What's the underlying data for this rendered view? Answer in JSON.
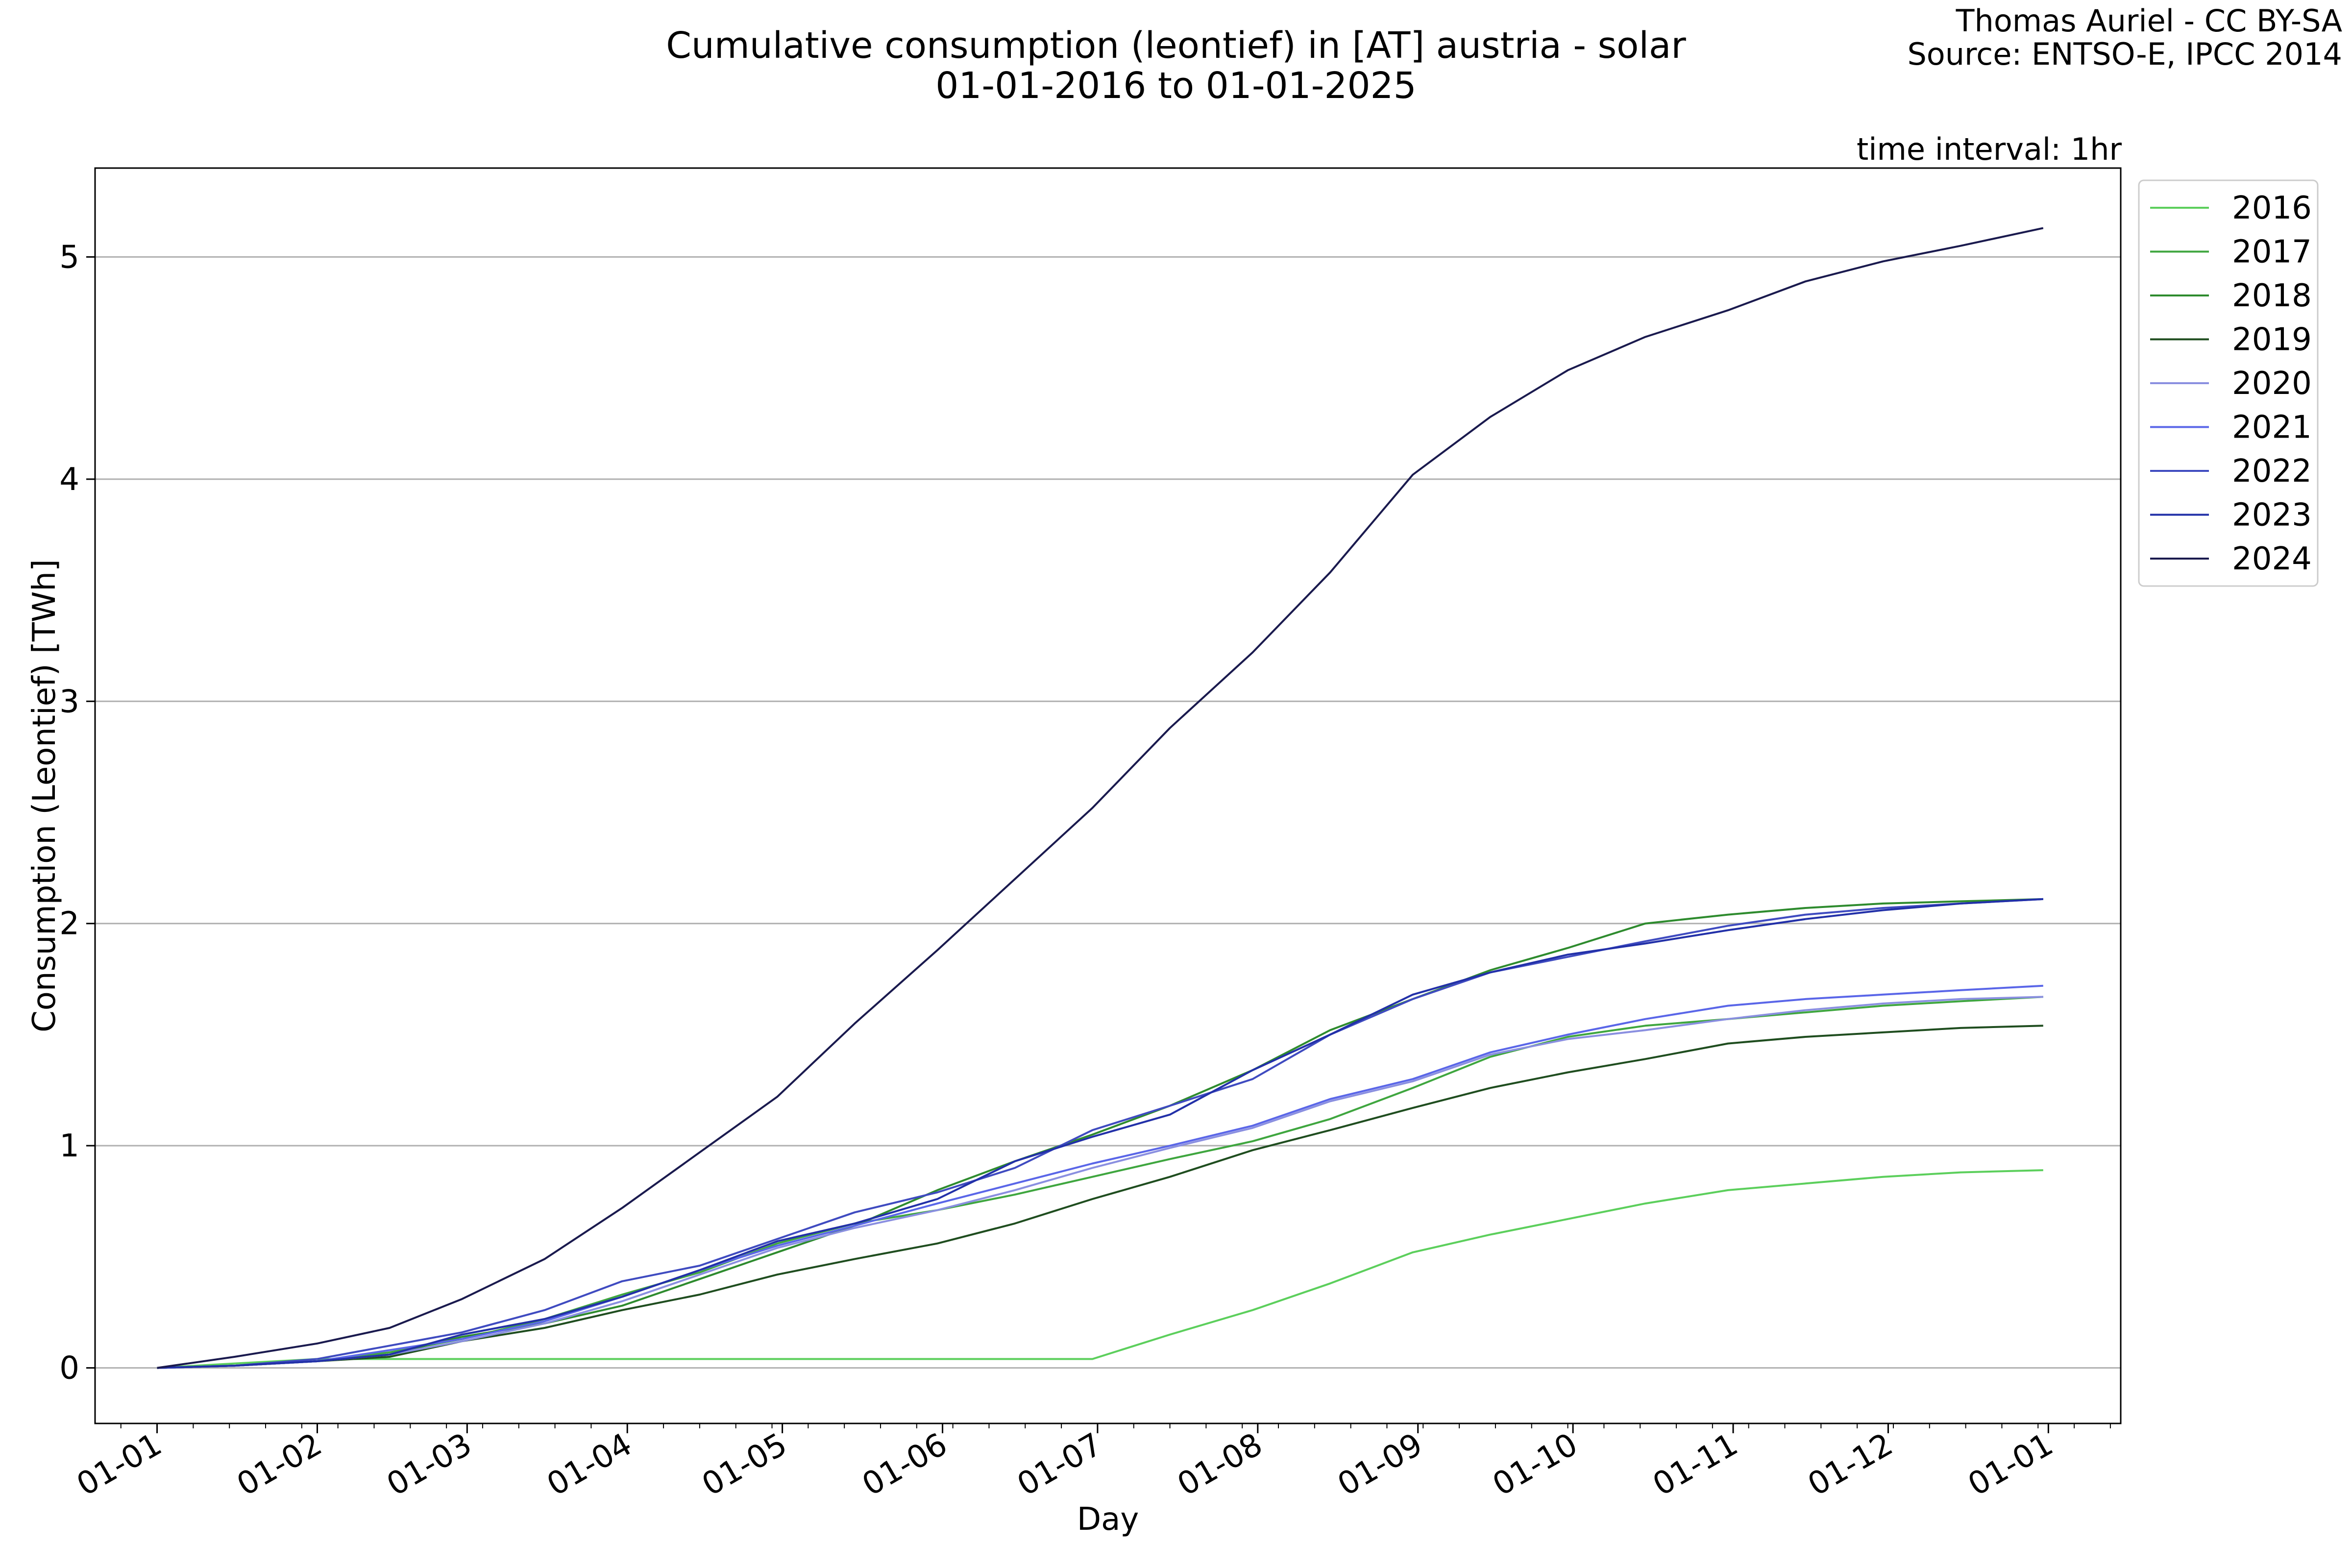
{
  "header": {
    "title_line1": "Cumulative consumption (leontief) in [AT] austria - solar",
    "title_line2": "01-01-2016 to 01-01-2025",
    "credit_line1": "Thomas Auriel - CC BY-SA",
    "credit_line2": "Source: ENTSO-E, IPCC 2014",
    "interval": "time interval: 1hr"
  },
  "chart_data": {
    "type": "line",
    "xlabel": "Day",
    "ylabel": "Consumption (Leontief) [TWh]",
    "x_ticks": [
      "01-01",
      "01-02",
      "01-03",
      "01-04",
      "01-05",
      "01-06",
      "01-07",
      "01-08",
      "01-09",
      "01-10",
      "01-11",
      "01-12",
      "01-01"
    ],
    "y_ticks": [
      0,
      1,
      2,
      3,
      4,
      5
    ],
    "xlim_days": [
      -12,
      380
    ],
    "ylim": [
      -0.25,
      5.4
    ],
    "grid": "y-major",
    "legend_position": "outside-right-top",
    "x": [
      0,
      15,
      31,
      45,
      59,
      75,
      90,
      105,
      120,
      135,
      151,
      166,
      181,
      196,
      212,
      227,
      243,
      258,
      273,
      288,
      304,
      319,
      334,
      349,
      365
    ],
    "series": [
      {
        "name": "2016",
        "color": "#5ccf5c",
        "values": [
          0,
          0.02,
          0.04,
          0.04,
          0.04,
          0.04,
          0.04,
          0.04,
          0.04,
          0.04,
          0.04,
          0.04,
          0.04,
          0.15,
          0.26,
          0.38,
          0.52,
          0.6,
          0.67,
          0.74,
          0.8,
          0.83,
          0.86,
          0.88,
          0.89
        ]
      },
      {
        "name": "2017",
        "color": "#3fa63f",
        "values": [
          0,
          0.01,
          0.03,
          0.07,
          0.13,
          0.22,
          0.33,
          0.43,
          0.56,
          0.65,
          0.71,
          0.78,
          0.86,
          0.94,
          1.02,
          1.12,
          1.26,
          1.4,
          1.49,
          1.54,
          1.57,
          1.6,
          1.63,
          1.65,
          1.67
        ]
      },
      {
        "name": "2018",
        "color": "#2e8b2e",
        "values": [
          0,
          0.01,
          0.03,
          0.06,
          0.14,
          0.2,
          0.28,
          0.4,
          0.52,
          0.64,
          0.8,
          0.93,
          1.05,
          1.18,
          1.34,
          1.52,
          1.66,
          1.79,
          1.89,
          2.0,
          2.04,
          2.07,
          2.09,
          2.1,
          2.11
        ]
      },
      {
        "name": "2019",
        "color": "#1f4d1f",
        "values": [
          0,
          0.01,
          0.03,
          0.05,
          0.12,
          0.18,
          0.26,
          0.33,
          0.42,
          0.49,
          0.56,
          0.65,
          0.76,
          0.86,
          0.98,
          1.07,
          1.17,
          1.26,
          1.33,
          1.39,
          1.46,
          1.49,
          1.51,
          1.53,
          1.54
        ]
      },
      {
        "name": "2020",
        "color": "#8a8fe0",
        "values": [
          0,
          0.01,
          0.03,
          0.06,
          0.12,
          0.2,
          0.3,
          0.42,
          0.54,
          0.63,
          0.71,
          0.8,
          0.9,
          0.99,
          1.08,
          1.2,
          1.29,
          1.41,
          1.48,
          1.52,
          1.57,
          1.61,
          1.64,
          1.66,
          1.67
        ]
      },
      {
        "name": "2021",
        "color": "#5a66e8",
        "values": [
          0,
          0.01,
          0.03,
          0.08,
          0.13,
          0.21,
          0.32,
          0.44,
          0.55,
          0.64,
          0.74,
          0.83,
          0.92,
          1.0,
          1.09,
          1.21,
          1.3,
          1.42,
          1.5,
          1.57,
          1.63,
          1.66,
          1.68,
          1.7,
          1.72
        ]
      },
      {
        "name": "2022",
        "color": "#3f4bc0",
        "values": [
          0,
          0.01,
          0.04,
          0.1,
          0.16,
          0.26,
          0.39,
          0.46,
          0.58,
          0.7,
          0.79,
          0.9,
          1.07,
          1.18,
          1.3,
          1.5,
          1.66,
          1.78,
          1.85,
          1.92,
          1.99,
          2.04,
          2.07,
          2.09,
          2.11
        ]
      },
      {
        "name": "2023",
        "color": "#2230a8",
        "values": [
          0,
          0.01,
          0.03,
          0.06,
          0.15,
          0.22,
          0.32,
          0.44,
          0.57,
          0.65,
          0.76,
          0.93,
          1.04,
          1.14,
          1.34,
          1.5,
          1.68,
          1.78,
          1.86,
          1.91,
          1.97,
          2.02,
          2.06,
          2.09,
          2.11
        ]
      },
      {
        "name": "2024",
        "color": "#1a1a4e",
        "values": [
          0,
          0.05,
          0.11,
          0.18,
          0.31,
          0.49,
          0.72,
          0.97,
          1.22,
          1.55,
          1.88,
          2.2,
          2.52,
          2.88,
          3.22,
          3.58,
          4.02,
          4.28,
          4.49,
          4.64,
          4.76,
          4.89,
          4.98,
          5.05,
          5.13
        ]
      }
    ]
  }
}
